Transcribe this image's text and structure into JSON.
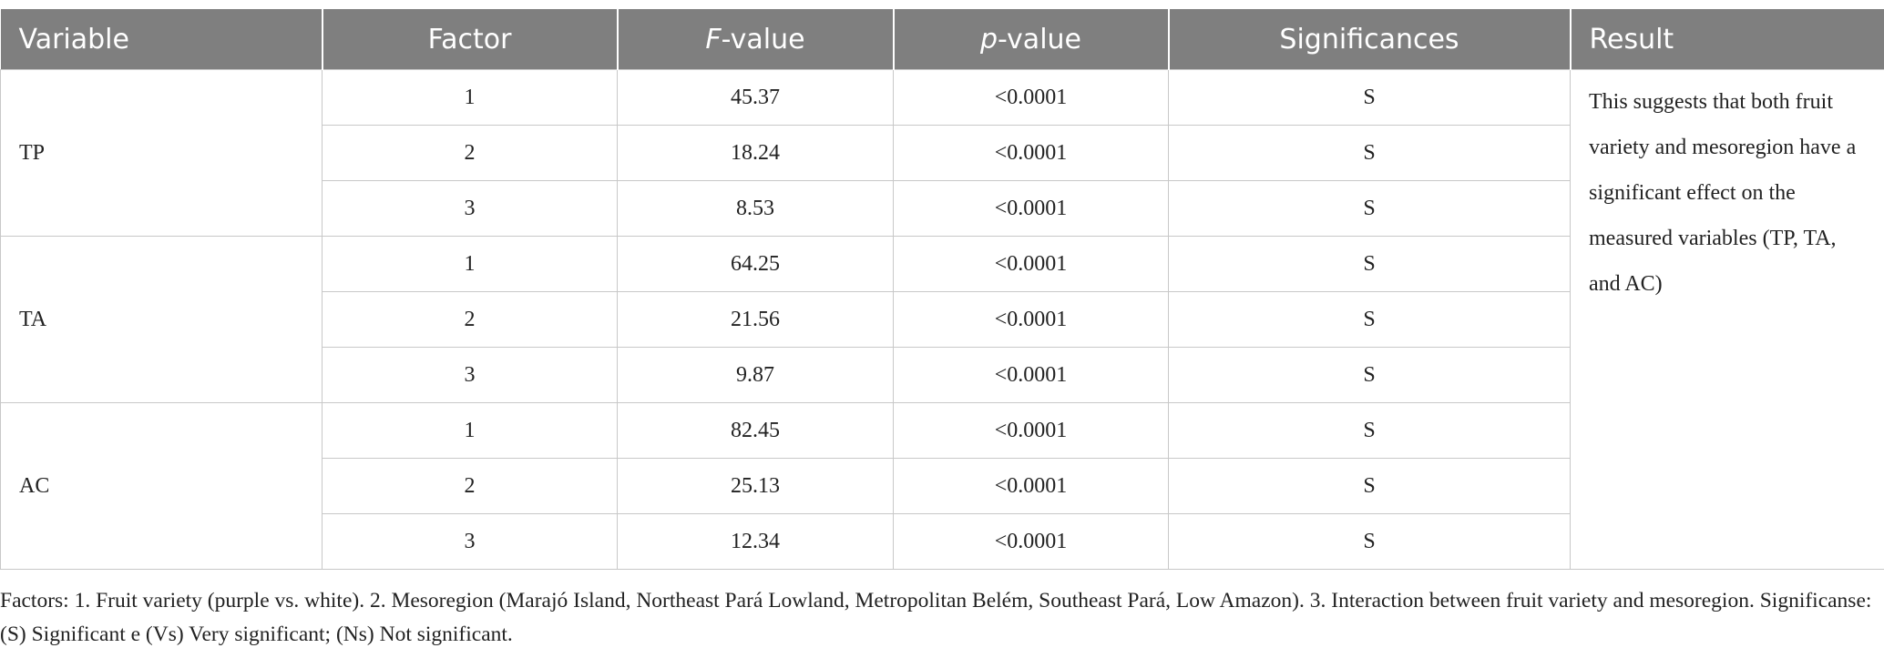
{
  "table": {
    "header": [
      "Variable",
      "Factor",
      {
        "em": "F",
        "rest": "-value"
      },
      {
        "em": "p",
        "rest": "-value"
      },
      "Significances",
      "Result"
    ],
    "groups": [
      {
        "variable": "TP",
        "rows": [
          [
            1,
            45.37,
            "<0.0001",
            "S"
          ],
          [
            2,
            18.24,
            "<0.0001",
            "S"
          ],
          [
            3,
            8.53,
            "<0.0001",
            "S"
          ]
        ]
      },
      {
        "variable": "TA",
        "rows": [
          [
            1,
            64.25,
            "<0.0001",
            "S"
          ],
          [
            2,
            21.56,
            "<0.0001",
            "S"
          ],
          [
            3,
            9.87,
            "<0.0001",
            "S"
          ]
        ]
      },
      {
        "variable": "AC",
        "rows": [
          [
            1,
            82.45,
            "<0.0001",
            "S"
          ],
          [
            2,
            25.13,
            "<0.0001",
            "S"
          ],
          [
            3,
            12.34,
            "<0.0001",
            "S"
          ]
        ]
      }
    ],
    "result": "This suggests that both fruit variety and mesoregion have a significant effect on the measured variables (TP, TA, and AC)"
  },
  "footnote": "Factors: 1. Fruit variety (purple vs. white). 2. Mesoregion (Marajó Island, Northeast Pará Lowland, Metropolitan Belém, Southeast Pará, Low Amazon). 3. Interaction between fruit variety and mesoregion. Significanse: (S) Significant e (Vs) Very significant; (Ns) Not significant."
}
